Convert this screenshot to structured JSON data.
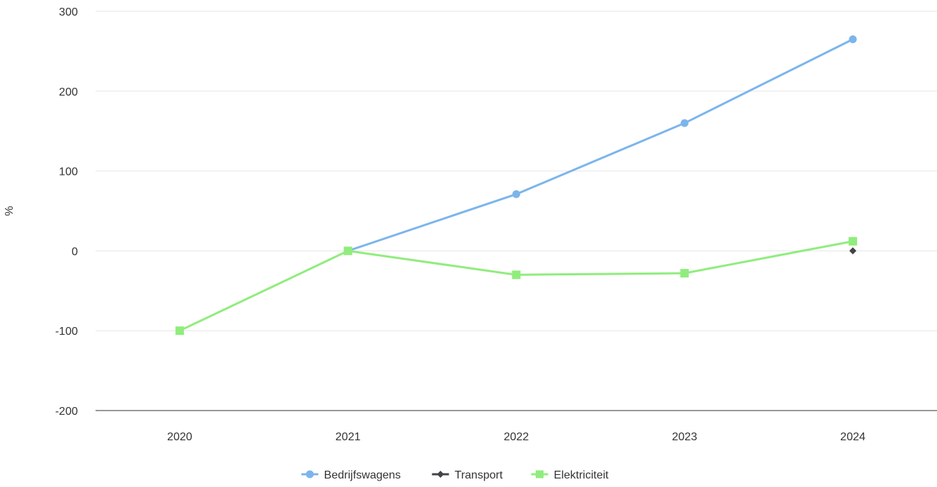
{
  "chart_data": {
    "type": "line",
    "title": "",
    "xlabel": "",
    "ylabel": "%",
    "categories": [
      "2020",
      "2021",
      "2022",
      "2023",
      "2024"
    ],
    "ylim": [
      -200,
      300
    ],
    "yticks": [
      300,
      200,
      100,
      0,
      -100,
      -200
    ],
    "grid": true,
    "legend_position": "bottom-center",
    "series": [
      {
        "name": "Bedrijfswagens",
        "color": "#7cb5ec",
        "marker": "circle",
        "values": [
          null,
          0,
          71,
          160,
          265
        ]
      },
      {
        "name": "Transport",
        "color": "#434348",
        "marker": "diamond",
        "values": [
          null,
          null,
          null,
          null,
          0
        ]
      },
      {
        "name": "Elektriciteit",
        "color": "#90ed7d",
        "marker": "square",
        "values": [
          -100,
          0,
          -30,
          -28,
          12
        ]
      }
    ]
  }
}
